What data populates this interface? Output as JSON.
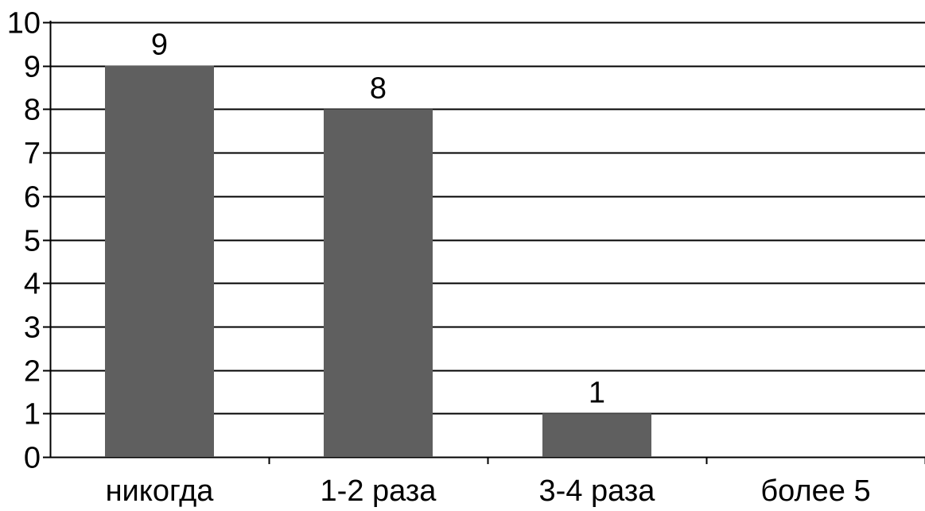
{
  "chart_data": {
    "type": "bar",
    "categories": [
      "никогда",
      "1-2 раза",
      "3-4 раза",
      "более 5"
    ],
    "values": [
      9,
      8,
      1,
      0
    ],
    "data_labels": [
      "9",
      "8",
      "1",
      ""
    ],
    "ylim": [
      0,
      10
    ],
    "yticks": [
      "0",
      "1",
      "2",
      "3",
      "4",
      "5",
      "6",
      "7",
      "8",
      "9",
      "10"
    ],
    "grid": true,
    "legend": "none",
    "colors": {
      "bar": "#5f5f5f",
      "grid": "#000000",
      "axis": "#000000",
      "text": "#000000",
      "background": "#ffffff"
    }
  }
}
